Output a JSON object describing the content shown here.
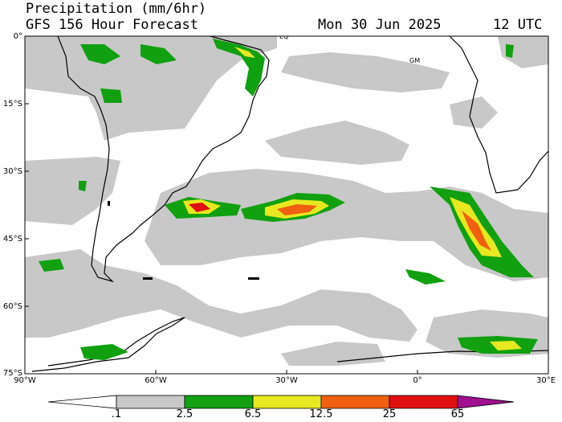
{
  "header": {
    "title": "Precipitation (mm/6hr)",
    "subtitle": "GFS 156 Hour Forecast",
    "date": "Mon 30 Jun 2025",
    "time": "12 UTC"
  },
  "map": {
    "lat_labels": [
      "0°",
      "15°S",
      "30°S",
      "45°S",
      "60°S",
      "75°S"
    ],
    "lon_labels": [
      "90°W",
      "60°W",
      "30°W",
      "0°",
      "30°E"
    ],
    "markers": [
      "EQ",
      "GM"
    ]
  },
  "colorbar": {
    "labels": [
      ".1",
      "2.5",
      "6.5",
      "12.5",
      "25",
      "65"
    ],
    "colors": [
      "#c8c8c8",
      "#10a010",
      "#e8e820",
      "#f06010",
      "#e01010",
      "#a01090"
    ]
  }
}
